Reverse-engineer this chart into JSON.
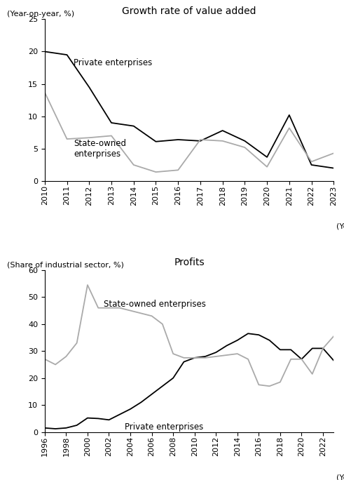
{
  "chart1": {
    "title": "Growth rate of value added",
    "ylabel": "(Year-on-year, %)",
    "xlabel": "(Year)",
    "ylim": [
      0,
      25
    ],
    "yticks": [
      0,
      5,
      10,
      15,
      20,
      25
    ],
    "private": {
      "years": [
        2010,
        2011,
        2012,
        2013,
        2014,
        2015,
        2016,
        2017,
        2018,
        2019,
        2020,
        2021,
        2022,
        2023
      ],
      "values": [
        20.0,
        19.5,
        14.5,
        9.0,
        8.5,
        6.1,
        6.4,
        6.2,
        7.8,
        6.2,
        3.7,
        10.2,
        2.5,
        2.0
      ],
      "color": "#000000",
      "label": "Private enterprises"
    },
    "state": {
      "years": [
        2010,
        2011,
        2012,
        2013,
        2014,
        2015,
        2016,
        2017,
        2018,
        2019,
        2020,
        2021,
        2022,
        2023
      ],
      "values": [
        13.7,
        6.5,
        6.7,
        7.0,
        2.5,
        1.4,
        1.7,
        6.4,
        6.2,
        5.2,
        2.2,
        8.2,
        3.0,
        4.3
      ],
      "color": "#aaaaaa",
      "label": "State-owned\nenterprises"
    }
  },
  "chart2": {
    "title": "Profits",
    "ylabel": "(Share of industrial sector, %)",
    "xlabel": "(Year)",
    "ylim": [
      0,
      60
    ],
    "yticks": [
      0,
      10,
      20,
      30,
      40,
      50,
      60
    ],
    "private": {
      "years": [
        1996,
        1997,
        1998,
        1999,
        2000,
        2001,
        2002,
        2003,
        2004,
        2005,
        2006,
        2007,
        2008,
        2009,
        2010,
        2011,
        2012,
        2013,
        2014,
        2015,
        2016,
        2017,
        2018,
        2019,
        2020,
        2021,
        2022,
        2023
      ],
      "values": [
        1.5,
        1.2,
        1.5,
        2.5,
        5.2,
        5.0,
        4.5,
        6.5,
        8.5,
        11.0,
        14.0,
        17.0,
        20.0,
        26.0,
        27.5,
        28.0,
        29.5,
        32.0,
        34.0,
        36.5,
        36.0,
        34.0,
        30.5,
        30.5,
        27.0,
        31.0,
        31.0,
        26.5
      ],
      "color": "#000000",
      "label": "Private enterprises"
    },
    "state": {
      "years": [
        1996,
        1997,
        1998,
        1999,
        2000,
        2001,
        2002,
        2003,
        2004,
        2005,
        2006,
        2007,
        2008,
        2009,
        2010,
        2011,
        2012,
        2013,
        2014,
        2015,
        2016,
        2017,
        2018,
        2019,
        2020,
        2021,
        2022,
        2023
      ],
      "values": [
        27.0,
        25.0,
        28.0,
        33.0,
        54.5,
        46.0,
        46.0,
        46.0,
        45.0,
        44.0,
        43.0,
        40.0,
        29.0,
        27.5,
        27.5,
        27.5,
        28.0,
        28.5,
        29.0,
        27.0,
        17.5,
        17.0,
        18.5,
        27.0,
        27.0,
        21.5,
        31.0,
        35.5
      ],
      "color": "#aaaaaa",
      "label": "State-owned enterprises"
    }
  },
  "background_color": "#ffffff",
  "text_color": "#000000",
  "annotation_fontsize": 8.5,
  "tick_fontsize": 8,
  "title_fontsize": 10
}
